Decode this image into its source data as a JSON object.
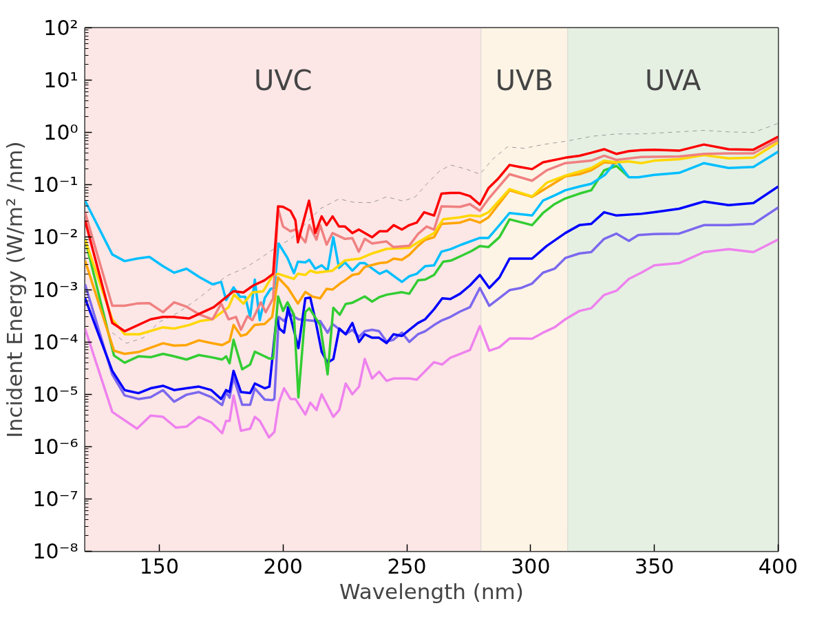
{
  "chart_data": {
    "type": "line",
    "xlabel": "Wavelength (nm)",
    "ylabel": "Incident Energy (W/m² /nm)",
    "log": "y",
    "grid": false,
    "xlim": [
      120,
      400
    ],
    "xticks": [
      150,
      200,
      250,
      300,
      350,
      400
    ],
    "ylim": [
      1e-08,
      100
    ],
    "yticks": [
      {
        "value": 1e-08,
        "label": "10⁻⁸"
      },
      {
        "value": 1e-07,
        "label": "10⁻⁷"
      },
      {
        "value": 1e-06,
        "label": "10⁻⁶"
      },
      {
        "value": 1e-05,
        "label": "10⁻⁵"
      },
      {
        "value": 0.0001,
        "label": "10⁻⁴"
      },
      {
        "value": 0.001,
        "label": "10⁻³"
      },
      {
        "value": 0.01,
        "label": "10⁻²"
      },
      {
        "value": 0.1,
        "label": "10⁻¹"
      },
      {
        "value": 1,
        "label": "10⁰"
      },
      {
        "value": 10,
        "label": "10¹"
      },
      {
        "value": 100,
        "label": "10²"
      }
    ],
    "bands": [
      {
        "axis": "x",
        "from": 120,
        "to": 280,
        "label": "UVC",
        "color": "#fde6e6"
      },
      {
        "axis": "x",
        "from": 280,
        "to": 315,
        "label": "UVB",
        "color": "#fdf4e6"
      },
      {
        "axis": "x",
        "from": 315,
        "to": 400,
        "label": "UVA",
        "color": "#e5f0e3"
      }
    ],
    "series": [
      {
        "color": "#999999",
        "line_style": "dashed",
        "x": [
          131,
          136.8,
          143.5,
          150,
          158,
          166,
          177,
          184.7,
          190.6,
          197.4,
          203.2,
          215,
          222.6,
          229,
          236,
          241.8,
          248.5,
          253.4,
          258.3,
          263,
          267.6,
          274,
          279.5,
          284.7,
          290.6,
          297.6,
          305,
          314,
          325,
          334.7,
          344.7,
          360,
          370,
          380,
          390,
          400
        ],
        "values": [
          0.00015,
          9.4e-05,
          0.00012,
          0.00024,
          0.00037,
          0.00069,
          0.0018,
          0.0026,
          0.0039,
          0.0065,
          0.0093,
          0.035,
          0.054,
          0.046,
          0.046,
          0.059,
          0.049,
          0.059,
          0.107,
          0.18,
          0.24,
          0.2,
          0.16,
          0.31,
          0.53,
          0.5,
          0.59,
          0.68,
          0.85,
          0.94,
          0.94,
          1.03,
          1.1,
          1.03,
          1.0,
          1.5
        ]
      },
      {
        "color": "#ee82ee",
        "x": [
          120,
          131,
          141,
          146.5,
          151.5,
          156.7,
          161,
          166,
          171,
          175.4,
          177,
          178.4,
          180,
          183,
          186.7,
          188.6,
          190.6,
          194.3,
          196.5,
          198.3,
          200.4,
          203,
          205,
          209,
          211,
          213.5,
          215.6,
          220.3,
          222.7,
          225.3,
          228,
          230.7,
          233,
          236,
          238.8,
          241.8,
          244.6,
          251,
          254,
          261,
          264.3,
          267.6,
          271.5,
          275.5,
          279.5,
          283.3,
          287.4,
          291.6,
          300.6,
          305,
          309.7,
          314,
          319.7,
          324.5,
          329.7,
          334.7,
          339.7,
          344.7,
          350,
          360,
          370,
          380,
          390,
          400
        ],
        "values": [
          0.00018,
          4.6e-06,
          2.2e-06,
          3.9e-06,
          3.7e-06,
          2.3e-06,
          2.4e-06,
          3.7e-06,
          2.9e-06,
          1.8e-06,
          3.1e-06,
          3.1e-06,
          9.5e-06,
          2e-06,
          2.2e-06,
          3.7e-06,
          3.1e-06,
          1.5e-06,
          1.9e-06,
          6.9e-06,
          1.3e-05,
          8.1e-06,
          8.1e-06,
          4.1e-06,
          6.9e-06,
          5e-06,
          1e-05,
          3.7e-06,
          5e-06,
          1.6e-05,
          1e-05,
          1.4e-05,
          4.7e-05,
          2e-05,
          2.7e-05,
          1.8e-05,
          2e-05,
          2e-05,
          1.9e-05,
          4.1e-05,
          3.7e-05,
          5e-05,
          5.9e-05,
          7e-05,
          0.0002,
          6.8e-05,
          7.9e-05,
          0.000117,
          0.000115,
          0.00015,
          0.00019,
          0.00027,
          0.00039,
          0.00044,
          0.00079,
          0.00095,
          0.0016,
          0.0021,
          0.0029,
          0.0032,
          0.0052,
          0.0059,
          0.0052,
          0.009
        ]
      },
      {
        "color": "#7b68ee",
        "x": [
          120,
          131,
          136,
          141.6,
          146.5,
          151.5,
          156,
          161,
          166,
          171,
          175.4,
          177,
          178.4,
          180,
          183.5,
          186.7,
          188.6,
          192.6,
          195.6,
          196.5,
          198.3,
          200.4,
          202.4,
          206.2,
          213,
          215,
          218,
          220,
          225.3,
          228,
          230.7,
          233,
          236,
          238.8,
          241.8,
          244.6,
          248,
          251,
          254.5,
          257.4,
          261,
          264.3,
          267.6,
          271.5,
          275.5,
          279.5,
          283.3,
          287.4,
          291.6,
          296,
          300.6,
          305,
          309.7,
          314,
          319.7,
          324.5,
          329.7,
          334.7,
          339.7,
          343.5,
          350,
          360,
          370,
          380,
          390,
          400
        ],
        "values": [
          0.00126,
          2.4e-05,
          9.5e-06,
          8.1e-06,
          8.8e-06,
          1.2e-05,
          7.2e-06,
          9.8e-06,
          1.1e-05,
          8.8e-06,
          6.2e-06,
          1.1e-05,
          8.6e-06,
          2.1e-05,
          6.3e-06,
          6.3e-06,
          1.3e-05,
          7.9e-06,
          7.7e-06,
          8.1e-06,
          0.0003,
          0.00025,
          0.00035,
          0.00027,
          0.00025,
          0.00025,
          0.00015,
          0.00022,
          0.00014,
          0.00017,
          0.000125,
          0.00016,
          0.00017,
          0.00016,
          0.000102,
          0.00011,
          0.00015,
          0.0001,
          0.00014,
          0.00016,
          0.00021,
          0.00026,
          0.0003,
          0.00038,
          0.00046,
          0.00107,
          0.00049,
          0.00069,
          0.00098,
          0.00107,
          0.0013,
          0.0021,
          0.0025,
          0.004,
          0.0049,
          0.0052,
          0.0093,
          0.0117,
          0.0085,
          0.011,
          0.0115,
          0.0117,
          0.017,
          0.017,
          0.018,
          0.037
        ]
      },
      {
        "color": "#0000ff",
        "x": [
          120,
          131,
          136,
          141.6,
          146.5,
          151.5,
          156,
          161,
          166,
          171,
          175,
          177,
          178.4,
          180,
          183,
          186.7,
          188.6,
          192.6,
          194.5,
          197.4,
          198.5,
          200.4,
          202,
          206.2,
          209,
          211,
          213,
          215.6,
          218,
          220.3,
          222.7,
          225.3,
          228,
          230.7,
          233,
          236,
          238.8,
          241.8,
          244.6,
          248,
          251,
          254.5,
          257.4,
          261,
          264.3,
          267.6,
          271.5,
          275.5,
          279.5,
          283.3,
          287.4,
          291.5,
          300.6,
          306.5,
          314,
          319.7,
          324.5,
          329.7,
          334.7,
          344.7,
          350,
          360,
          370,
          380,
          390,
          400
        ],
        "values": [
          0.00069,
          2.8e-05,
          1.2e-05,
          1.05e-05,
          1.3e-05,
          1.45e-05,
          1.2e-05,
          1.3e-05,
          1.4e-05,
          1.2e-05,
          8.1e-06,
          1.2e-05,
          1.1e-05,
          2.8e-05,
          1.1e-05,
          1.05e-05,
          1.6e-05,
          1.3e-05,
          1.4e-05,
          0.0003,
          0.00018,
          0.00015,
          0.00046,
          7.6e-05,
          0.00068,
          0.0007,
          0.00027,
          6.5e-05,
          4e-05,
          4.7e-05,
          0.00018,
          0.00014,
          0.00023,
          0.0001,
          0.00014,
          0.00012,
          0.00012,
          9.5e-05,
          0.00014,
          0.00013,
          0.00017,
          0.00023,
          0.00027,
          0.00042,
          0.00068,
          0.00066,
          0.00083,
          0.0012,
          0.0019,
          0.00107,
          0.0017,
          0.0039,
          0.0039,
          0.0068,
          0.012,
          0.017,
          0.018,
          0.03,
          0.026,
          0.028,
          0.03,
          0.035,
          0.048,
          0.041,
          0.045,
          0.093
        ]
      },
      {
        "color": "#32cd32",
        "x": [
          120,
          131.7,
          136,
          141.6,
          146.5,
          151.5,
          156,
          161,
          166,
          171,
          175.4,
          177,
          178.4,
          180,
          183.5,
          186.7,
          188.6,
          191.5,
          194.5,
          196,
          198,
          200,
          201.8,
          204.4,
          206.2,
          209,
          210.6,
          215,
          218,
          220.3,
          222.9,
          225.3,
          228,
          233,
          236,
          239,
          242,
          248,
          251,
          254.5,
          257.4,
          261,
          264.7,
          268,
          272,
          276,
          279.5,
          283,
          287.4,
          291.5,
          300.6,
          305,
          309.7,
          314,
          319.7,
          324.5,
          329.7,
          334.7,
          339.7
        ],
        "values": [
          0.0093,
          5.5e-05,
          4e-05,
          5.3e-05,
          5.1e-05,
          5.9e-05,
          5.3e-05,
          4.6e-05,
          5.6e-05,
          5.1e-05,
          4.6e-05,
          5.3e-05,
          3.9e-05,
          0.00011,
          3e-05,
          3.7e-05,
          6.5e-05,
          5.6e-05,
          4.8e-05,
          4.8e-05,
          0.00074,
          0.00039,
          0.00057,
          0.00033,
          8.7e-06,
          0.00037,
          0.00044,
          0.00021,
          2.4e-05,
          0.00045,
          0.00033,
          0.00053,
          0.00056,
          0.00074,
          0.00059,
          0.00072,
          0.0008,
          0.00089,
          0.00083,
          0.0015,
          0.00155,
          0.0019,
          0.0034,
          0.0036,
          0.0044,
          0.0054,
          0.0068,
          0.0065,
          0.01,
          0.022,
          0.017,
          0.029,
          0.043,
          0.055,
          0.068,
          0.079,
          0.19,
          0.23,
          0.14
        ]
      },
      {
        "color": "#00bfff",
        "x": [
          120,
          131,
          136,
          141,
          146,
          151.5,
          156,
          161,
          166.5,
          171.5,
          175,
          177,
          180,
          182.6,
          184.7,
          186.7,
          188.6,
          190.6,
          192.6,
          195,
          196.5,
          198.2,
          201.8,
          204.4,
          206,
          209,
          210.6,
          213,
          215.6,
          218,
          220.3,
          222.6,
          225,
          228,
          231,
          233,
          239,
          241.8,
          248,
          251,
          254,
          257.4,
          261,
          264,
          267.6,
          272,
          279.5,
          283,
          287.4,
          291.5,
          300.6,
          305,
          309.7,
          314,
          319.7,
          324.5,
          330,
          334.7,
          339.7,
          343.5,
          350,
          360,
          370,
          380,
          390,
          400
        ],
        "values": [
          0.05,
          0.0047,
          0.0035,
          0.0039,
          0.0042,
          0.0028,
          0.0021,
          0.0025,
          0.0017,
          0.00126,
          0.0014,
          0.00063,
          0.0011,
          0.00073,
          0.00073,
          0.0003,
          0.00155,
          0.00026,
          0.00069,
          0.00103,
          0.00107,
          0.0076,
          0.004,
          0.00205,
          0.0034,
          0.0033,
          0.0037,
          0.0025,
          0.0029,
          0.0023,
          0.01,
          0.0026,
          0.0033,
          0.0023,
          0.0032,
          0.0032,
          0.002,
          0.0023,
          0.0014,
          0.0018,
          0.002,
          0.0028,
          0.0029,
          0.0053,
          0.0059,
          0.0072,
          0.0097,
          0.0097,
          0.017,
          0.029,
          0.026,
          0.05,
          0.063,
          0.079,
          0.093,
          0.105,
          0.155,
          0.29,
          0.14,
          0.14,
          0.155,
          0.17,
          0.26,
          0.21,
          0.22,
          0.43
        ]
      },
      {
        "color": "#ffa500",
        "x": [
          120,
          131.7,
          136,
          141.6,
          151.5,
          156,
          161,
          166,
          171,
          175.4,
          178.4,
          180,
          183,
          185.3,
          188.5,
          192.6,
          195.6,
          198,
          202,
          206,
          209,
          212,
          215,
          217.6,
          220,
          223,
          225,
          228,
          230.6,
          233,
          239,
          242,
          244.7,
          248,
          251,
          254.5,
          257.4,
          261,
          264,
          271.5,
          275.5,
          279.5,
          283,
          291.5,
          300.6,
          314,
          319.7,
          324.5,
          329.7,
          334.7
        ],
        "values": [
          0.0036,
          6.8e-05,
          5.9e-05,
          6.4e-05,
          9.4e-05,
          8.5e-05,
          8.7e-05,
          0.000107,
          9.5e-05,
          8.7e-05,
          0.000103,
          0.00021,
          0.00013,
          0.00014,
          0.00021,
          0.00022,
          0.0003,
          0.0017,
          0.00107,
          0.00054,
          0.0009,
          0.00073,
          0.00068,
          0.00103,
          0.001,
          0.0013,
          0.0015,
          0.0019,
          0.002,
          0.0027,
          0.0032,
          0.0033,
          0.0039,
          0.0037,
          0.0046,
          0.0068,
          0.0089,
          0.01,
          0.018,
          0.019,
          0.022,
          0.019,
          0.024,
          0.079,
          0.059,
          0.145,
          0.16,
          0.19,
          0.27,
          0.26
        ]
      },
      {
        "color": "#ffd700",
        "x": [
          120,
          131,
          136,
          142,
          151.5,
          156,
          162,
          166.5,
          171.5,
          178,
          180.2,
          184,
          187.6,
          192,
          195.6,
          198,
          204.4,
          206,
          209,
          211,
          213.5,
          220,
          225,
          231,
          236,
          242,
          251,
          254.5,
          261,
          264.7,
          271.5,
          275.5,
          279.5,
          283,
          291.5,
          300.6,
          306.5,
          314,
          319.7,
          324.5,
          329.7,
          334.7,
          339.7,
          344.7,
          350,
          360,
          370,
          380,
          390,
          400
        ],
        "values": [
          0.009,
          0.00027,
          0.00014,
          0.00014,
          0.00019,
          0.00018,
          0.00021,
          0.00025,
          0.00027,
          0.00046,
          0.0008,
          0.00054,
          0.00088,
          0.00093,
          0.0018,
          0.002,
          0.0016,
          0.002,
          0.0019,
          0.0023,
          0.0021,
          0.0023,
          0.0036,
          0.0039,
          0.0049,
          0.006,
          0.0063,
          0.008,
          0.012,
          0.022,
          0.024,
          0.026,
          0.025,
          0.03,
          0.083,
          0.06,
          0.11,
          0.15,
          0.18,
          0.21,
          0.29,
          0.27,
          0.28,
          0.26,
          0.29,
          0.31,
          0.37,
          0.32,
          0.33,
          0.65
        ]
      },
      {
        "color": "#f08080",
        "x": [
          120,
          131,
          136,
          141,
          146,
          151.5,
          156,
          161,
          166.5,
          171.5,
          175,
          178,
          181,
          183,
          185.6,
          187.6,
          191,
          193,
          196,
          198,
          200,
          203,
          205,
          209,
          210.6,
          213.5,
          215,
          217.6,
          220,
          225,
          228,
          230.6,
          233,
          236,
          241.8,
          244.5,
          251,
          254.5,
          258,
          261,
          264,
          271.5,
          275.5,
          279.5,
          283,
          291.5,
          300.6,
          306.5,
          314,
          324.5,
          329.7,
          334.7,
          344.7,
          360,
          370,
          380,
          390,
          400
        ],
        "values": [
          0.03,
          0.00049,
          0.00049,
          0.00054,
          0.00055,
          0.00037,
          0.00057,
          0.00047,
          0.00033,
          0.00027,
          0.00054,
          0.00027,
          0.0003,
          0.00017,
          0.00031,
          0.00026,
          0.00057,
          0.00037,
          0.00068,
          0.035,
          0.016,
          0.013,
          0.014,
          0.008,
          0.017,
          0.009,
          0.017,
          0.0072,
          0.012,
          0.0093,
          0.0096,
          0.0053,
          0.0093,
          0.0076,
          0.0083,
          0.0065,
          0.0069,
          0.0115,
          0.016,
          0.014,
          0.039,
          0.038,
          0.043,
          0.032,
          0.054,
          0.16,
          0.12,
          0.19,
          0.26,
          0.29,
          0.36,
          0.3,
          0.34,
          0.35,
          0.39,
          0.4,
          0.4,
          0.73
        ]
      },
      {
        "color": "#ff0000",
        "x": [
          120,
          131,
          136,
          146.5,
          151.5,
          156,
          162,
          172,
          180,
          184,
          188,
          192.5,
          196,
          198,
          200,
          203,
          205,
          206,
          210.5,
          213,
          215.6,
          217.6,
          220,
          222.6,
          225,
          228,
          230.6,
          236,
          239,
          242,
          244.7,
          248,
          251,
          254,
          257,
          261,
          264,
          267.6,
          271.5,
          275.5,
          279.5,
          283,
          286.8,
          291.5,
          295.6,
          300.6,
          305,
          314,
          319.7,
          324.5,
          329.7,
          334.7,
          339.7,
          344.7,
          350,
          360,
          370,
          380,
          390,
          400
        ],
        "values": [
          0.021,
          0.00023,
          0.00016,
          0.00027,
          0.0003,
          0.0003,
          0.00028,
          0.00046,
          0.00093,
          0.00088,
          0.0012,
          0.0015,
          0.002,
          0.039,
          0.038,
          0.032,
          0.021,
          0.008,
          0.05,
          0.012,
          0.025,
          0.017,
          0.025,
          0.016,
          0.016,
          0.012,
          0.014,
          0.01,
          0.013,
          0.013,
          0.017,
          0.014,
          0.017,
          0.019,
          0.03,
          0.026,
          0.068,
          0.07,
          0.07,
          0.061,
          0.042,
          0.087,
          0.13,
          0.24,
          0.22,
          0.2,
          0.27,
          0.33,
          0.36,
          0.41,
          0.48,
          0.39,
          0.44,
          0.46,
          0.47,
          0.45,
          0.59,
          0.48,
          0.47,
          0.83
        ]
      }
    ]
  }
}
